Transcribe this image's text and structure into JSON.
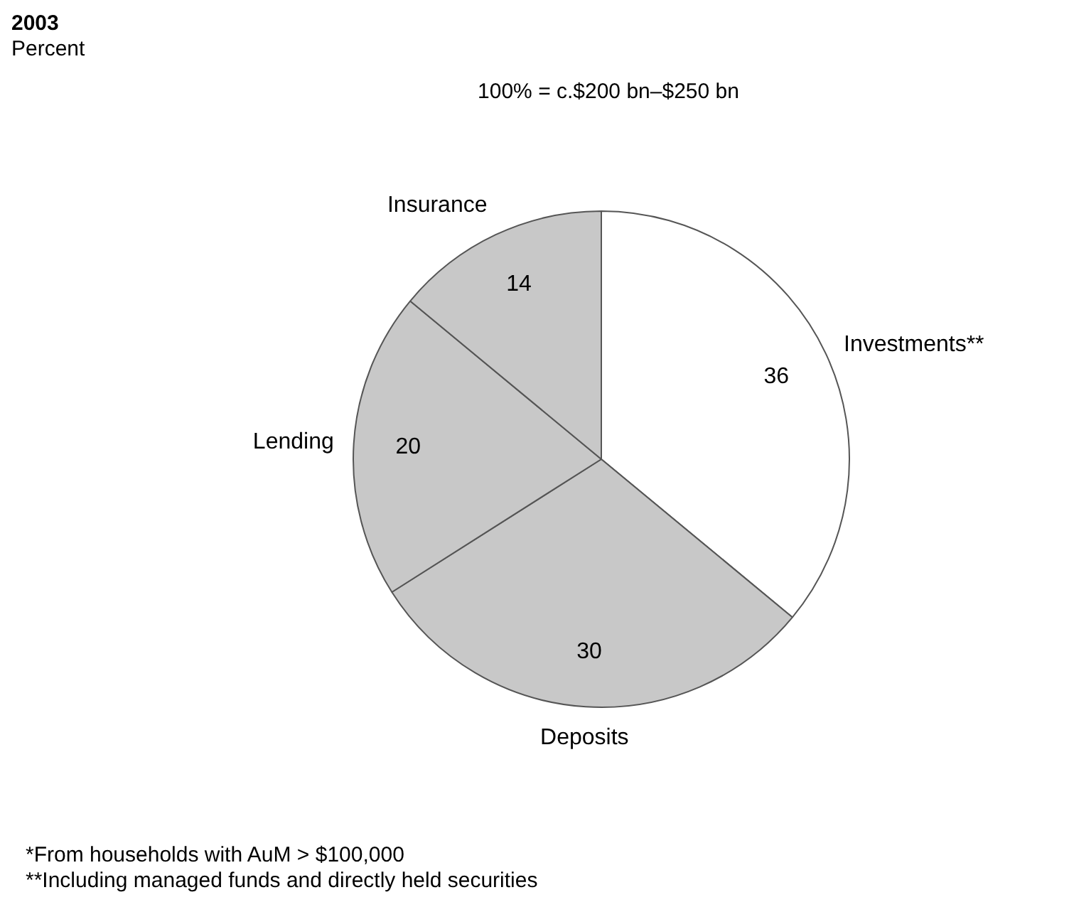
{
  "chart_data": {
    "type": "pie",
    "title": "2003",
    "subtitle": "Percent",
    "categories": [
      "Investments**",
      "Deposits",
      "Lending",
      "Insurance"
    ],
    "values": [
      36,
      30,
      20,
      14
    ],
    "colors": [
      "#ffffff",
      "#c8c8c8",
      "#c8c8c8",
      "#c8c8c8"
    ],
    "data_labels": true,
    "legend": false,
    "annotations": [
      "100% = c.$200 bn–$250 bn",
      "*From households with AuM > $100,000",
      "**Including managed funds and directly held securities"
    ]
  }
}
